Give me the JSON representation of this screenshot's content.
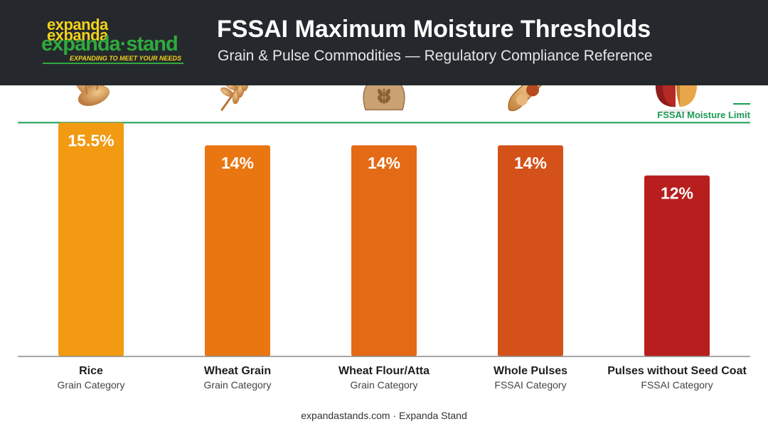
{
  "header": {
    "logo": {
      "line1": "expanda",
      "line2": "expanda",
      "wordmark": "expanda·stand",
      "tagline": "EXPANDING TO MEET YOUR NEEDS"
    },
    "title": "FSSAI Maximum Moisture Thresholds",
    "subtitle": "Grain & Pulse Commodities — Regulatory Compliance Reference"
  },
  "chart_data": {
    "type": "bar",
    "categories": [
      "Rice",
      "Wheat Grain",
      "Wheat Flour/Atta",
      "Whole Pulses",
      "Pulses without Seed Coat"
    ],
    "category_groups": [
      "Grain Category",
      "Grain Category",
      "Grain Category",
      "FSSAI Category",
      "FSSAI Category"
    ],
    "values": [
      15.5,
      14,
      14,
      14,
      12
    ],
    "value_labels": [
      "15.5%",
      "14%",
      "14%",
      "14%",
      "12%"
    ],
    "bar_colors": [
      "#f19a12",
      "#e97611",
      "#e46a15",
      "#d4521a",
      "#b81e1e"
    ],
    "icons": [
      "rice-grains-icon",
      "wheat-stalk-icon",
      "flour-sack-icon",
      "pulse-pod-icon",
      "split-seed-icon"
    ],
    "reference_line": {
      "label": "FSSAI Moisture Limit",
      "value": 15.5,
      "color": "#1b9b57"
    },
    "ylim": [
      0,
      16.9
    ],
    "grid": false,
    "legend_position": "top-right"
  },
  "footer": {
    "text": "expandastands.com · Expanda Stand"
  }
}
